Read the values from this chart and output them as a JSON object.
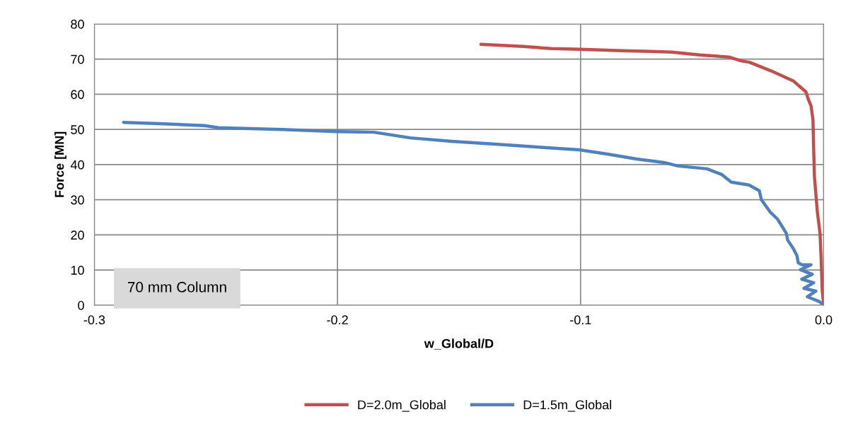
{
  "chart_data": {
    "type": "line",
    "xlabel": "w_Global/D",
    "ylabel": "Force [MN]",
    "xlim": [
      -0.3,
      0.0
    ],
    "xticks": [
      {
        "value": -0.3,
        "label": "-0.3"
      },
      {
        "value": -0.2,
        "label": "-0.2"
      },
      {
        "value": -0.1,
        "label": "-0.1"
      },
      {
        "value": 0.0,
        "label": "0.0"
      }
    ],
    "ylim": [
      0,
      80
    ],
    "yticks": [
      0,
      10,
      20,
      30,
      40,
      50,
      60,
      70,
      80
    ],
    "grid": true,
    "legend": "bottom",
    "marker": "none",
    "line_style": "solid",
    "annotations": [
      "70 mm Column"
    ],
    "series": [
      {
        "name": "D=2.0m_Global",
        "color": "#c0504d",
        "x": [
          -0.141,
          -0.135,
          -0.1235,
          -0.112,
          -0.1,
          -0.083,
          -0.071,
          -0.0625,
          -0.051,
          -0.039,
          -0.034,
          -0.0305,
          -0.0218,
          -0.0125,
          -0.0073,
          -0.0064,
          -0.0052,
          -0.0044,
          -0.0042,
          -0.0038,
          -0.0026,
          -0.0015,
          -0.001,
          -0.0006,
          0.0
        ],
        "values": [
          74.2,
          74.0,
          73.6,
          73.0,
          72.8,
          72.4,
          72.2,
          72.0,
          71.2,
          70.6,
          69.5,
          69.1,
          66.7,
          63.8,
          60.7,
          58.7,
          56.7,
          52.7,
          46.6,
          36.6,
          26.5,
          20.5,
          12.5,
          4.4,
          0
        ]
      },
      {
        "name": "D=1.5m_Global",
        "color": "#4f81bd",
        "x": [
          -0.288,
          -0.275,
          -0.2547,
          -0.249,
          -0.2227,
          -0.2,
          -0.185,
          -0.17,
          -0.153,
          -0.135,
          -0.118,
          -0.1006,
          -0.089,
          -0.077,
          -0.0657,
          -0.0599,
          -0.048,
          -0.042,
          -0.038,
          -0.0308,
          -0.0265,
          -0.0256,
          -0.022,
          -0.019,
          -0.0154,
          -0.0148,
          -0.0125,
          -0.011,
          -0.0105,
          -0.009,
          -0.0052,
          -0.0096,
          -0.0047,
          -0.009,
          -0.0041,
          -0.0081,
          -0.0032,
          -0.0067,
          -0.0017,
          0.0
        ],
        "values": [
          52.0,
          51.7,
          51.1,
          50.5,
          50.0,
          49.4,
          49.2,
          47.6,
          46.6,
          45.8,
          45.0,
          44.2,
          43.0,
          41.6,
          40.6,
          39.6,
          38.8,
          37.2,
          35.0,
          34.2,
          32.6,
          30.0,
          26.5,
          24.5,
          20.5,
          18.5,
          16.1,
          14.1,
          12.1,
          11.5,
          11.5,
          10.1,
          8.8,
          7.4,
          6.4,
          4.8,
          4.0,
          2.4,
          1.0,
          0
        ]
      }
    ]
  }
}
